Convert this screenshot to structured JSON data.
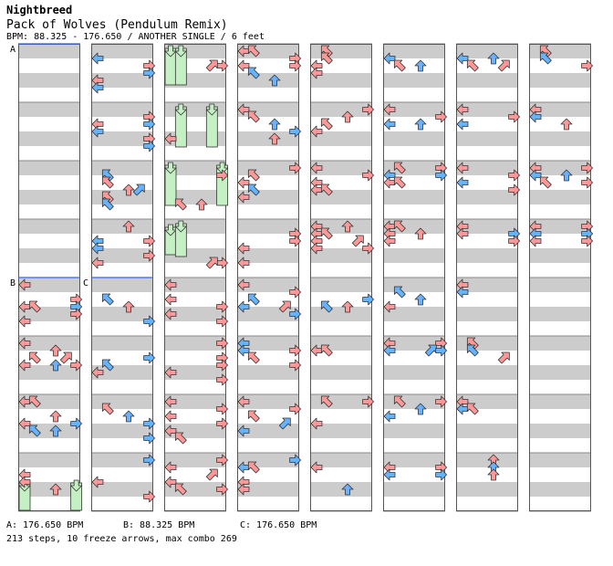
{
  "header": {
    "artist": "Nightbreed",
    "title": "Pack of Wolves (Pendulum Remix)",
    "info": "BPM: 88.325 - 176.650 / ANOTHER SINGLE / 6 feet"
  },
  "section_markers": [
    {
      "label": "A",
      "column": 0,
      "measure": 0
    },
    {
      "label": "B",
      "column": 0,
      "measure": 4
    },
    {
      "label": "C",
      "column": 1,
      "measure": 4
    }
  ],
  "footer": {
    "bpm_a": "A: 176.650 BPM",
    "bpm_b": "B: 88.325 BPM",
    "bpm_c": "C: 176.650 BPM",
    "summary": "213 steps, 10 freeze arrows, max combo 269"
  },
  "colors": {
    "red_arrow": "#ff9999",
    "blue_arrow": "#66b3ff",
    "freeze": "#c4f0c4",
    "stripe": "#cccccc",
    "marker_line": "#3366ff"
  }
}
